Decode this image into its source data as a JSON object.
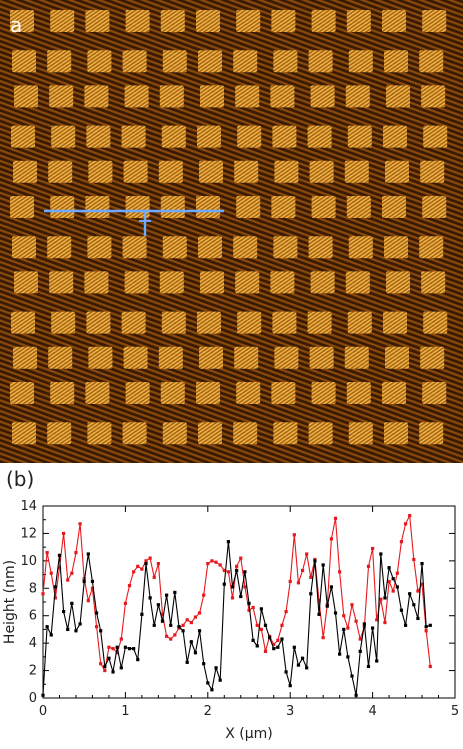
{
  "panel_a": {
    "label": "a",
    "colors": {
      "bg_dark": "#3a1a02",
      "bg_mid": "#8a4a0c",
      "highlight": "#ffcf5a",
      "scan_line": "#6fa8ff"
    }
  },
  "panel_b": {
    "label": "(b)"
  },
  "chart_data": {
    "type": "line",
    "xlabel": "X (μm)",
    "ylabel": "Height (nm)",
    "xlim": [
      0,
      5
    ],
    "ylim": [
      0,
      14
    ],
    "xticks": [
      "0",
      "1",
      "2",
      "3",
      "4",
      "5"
    ],
    "yticks": [
      "0",
      "2",
      "4",
      "6",
      "8",
      "10",
      "12",
      "14"
    ],
    "grid": false,
    "series": [
      {
        "color": "#000000",
        "x": [
          0.0,
          0.05,
          0.1,
          0.15,
          0.2,
          0.25,
          0.3,
          0.35,
          0.4,
          0.45,
          0.5,
          0.55,
          0.6,
          0.65,
          0.7,
          0.75,
          0.8,
          0.85,
          0.9,
          0.95,
          1.0,
          1.05,
          1.1,
          1.15,
          1.2,
          1.25,
          1.3,
          1.35,
          1.4,
          1.45,
          1.5,
          1.55,
          1.6,
          1.65,
          1.7,
          1.75,
          1.8,
          1.85,
          1.9,
          1.95,
          2.0,
          2.05,
          2.1,
          2.15,
          2.2,
          2.25,
          2.3,
          2.35,
          2.4,
          2.45,
          2.5,
          2.55,
          2.6,
          2.65,
          2.7,
          2.75,
          2.8,
          2.85,
          2.9,
          2.95,
          3.0,
          3.05,
          3.1,
          3.15,
          3.2,
          3.25,
          3.3,
          3.35,
          3.4,
          3.45,
          3.5,
          3.55,
          3.6,
          3.65,
          3.7,
          3.75,
          3.8,
          3.85,
          3.9,
          3.95,
          4.0,
          4.05,
          4.1,
          4.15,
          4.2,
          4.25,
          4.3,
          4.35,
          4.4,
          4.45,
          4.5,
          4.55,
          4.6,
          4.65,
          4.7
        ],
        "y": [
          0.2,
          5.2,
          4.6,
          8.1,
          10.4,
          6.3,
          5.0,
          6.9,
          4.9,
          5.4,
          8.5,
          10.5,
          8.5,
          6.2,
          4.9,
          2.3,
          2.9,
          1.9,
          3.7,
          2.2,
          3.7,
          3.6,
          3.6,
          2.8,
          6.1,
          9.8,
          7.3,
          5.3,
          6.8,
          5.6,
          7.5,
          5.3,
          7.7,
          5.2,
          4.9,
          2.6,
          4.1,
          3.3,
          4.9,
          2.5,
          1.1,
          0.6,
          2.2,
          1.3,
          8.3,
          11.4,
          8.1,
          9.3,
          7.4,
          9.2,
          6.9,
          4.2,
          3.8,
          6.5,
          5.3,
          4.4,
          3.6,
          3.7,
          4.3,
          1.9,
          0.9,
          3.7,
          2.4,
          2.9,
          2.2,
          7.6,
          10.0,
          6.1,
          9.7,
          6.7,
          8.1,
          6.2,
          3.2,
          5.0,
          3.0,
          1.6,
          0.2,
          3.4,
          5.4,
          2.3,
          5.1,
          2.7,
          10.5,
          7.3,
          9.5,
          8.7,
          8.1,
          6.4,
          5.3,
          7.6,
          6.8,
          5.8,
          9.8,
          5.2,
          5.3
        ]
      },
      {
        "color": "#e8191e",
        "x": [
          0.0,
          0.05,
          0.1,
          0.15,
          0.2,
          0.25,
          0.3,
          0.35,
          0.4,
          0.45,
          0.5,
          0.55,
          0.6,
          0.65,
          0.7,
          0.75,
          0.8,
          0.85,
          0.9,
          0.95,
          1.0,
          1.05,
          1.1,
          1.15,
          1.2,
          1.25,
          1.3,
          1.35,
          1.4,
          1.45,
          1.5,
          1.55,
          1.6,
          1.65,
          1.7,
          1.75,
          1.8,
          1.85,
          1.9,
          1.95,
          2.0,
          2.05,
          2.1,
          2.15,
          2.2,
          2.25,
          2.3,
          2.35,
          2.4,
          2.45,
          2.5,
          2.55,
          2.6,
          2.65,
          2.7,
          2.75,
          2.8,
          2.85,
          2.9,
          2.95,
          3.0,
          3.05,
          3.1,
          3.15,
          3.2,
          3.25,
          3.3,
          3.35,
          3.4,
          3.45,
          3.5,
          3.55,
          3.6,
          3.65,
          3.7,
          3.75,
          3.8,
          3.85,
          3.9,
          3.95,
          4.0,
          4.05,
          4.1,
          4.15,
          4.2,
          4.25,
          4.3,
          4.35,
          4.4,
          4.45,
          4.5,
          4.55,
          4.6,
          4.65,
          4.7
        ],
        "y": [
          7.6,
          10.6,
          9.1,
          7.3,
          9.5,
          12.0,
          8.6,
          9.1,
          10.6,
          12.7,
          8.7,
          7.1,
          8.0,
          5.2,
          2.5,
          2.0,
          3.7,
          3.6,
          3.3,
          4.3,
          6.9,
          8.2,
          9.2,
          9.6,
          9.4,
          10.0,
          10.2,
          8.8,
          9.8,
          6.1,
          4.5,
          4.3,
          4.6,
          5.1,
          5.3,
          5.7,
          5.5,
          5.9,
          6.2,
          7.5,
          9.8,
          10.0,
          9.9,
          9.7,
          9.3,
          9.2,
          7.3,
          9.6,
          10.2,
          8.1,
          6.4,
          6.6,
          5.3,
          5.0,
          3.4,
          4.5,
          3.9,
          4.2,
          5.3,
          6.3,
          8.5,
          11.9,
          8.4,
          9.3,
          10.5,
          8.8,
          10.1,
          7.1,
          4.4,
          6.8,
          11.6,
          13.1,
          9.2,
          6.0,
          5.1,
          6.8,
          5.6,
          4.3,
          5.2,
          9.6,
          10.9,
          5.7,
          7.2,
          5.5,
          8.5,
          7.8,
          9.1,
          11.4,
          12.7,
          13.3,
          10.1,
          7.8,
          8.3,
          4.9,
          2.3
        ]
      }
    ]
  }
}
